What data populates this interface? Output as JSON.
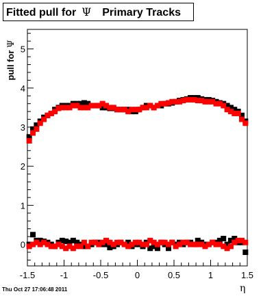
{
  "title": {
    "text": "Fitted pull for",
    "symbol": "Ψ",
    "suffix": "Primary Tracks"
  },
  "ylabel": {
    "text": "pull for",
    "symbol": "Ψ"
  },
  "xlabel": "η",
  "datestamp": "Thu Oct 27 17:06:48 2011",
  "colors": {
    "series_black": "#000000",
    "series_red": "#ff0000"
  },
  "chart_data": {
    "type": "scatter",
    "xlim": [
      -1.5,
      1.5
    ],
    "ylim": [
      -0.55,
      5.5
    ],
    "x_ticks": [
      -1.5,
      -1,
      -0.5,
      0,
      0.5,
      1,
      1.5
    ],
    "x_tick_labels": [
      "-1.5",
      "-1",
      "-0.5",
      "0",
      "0.5",
      "1",
      "1.5"
    ],
    "y_ticks": [
      0,
      1,
      2,
      3,
      4,
      5
    ],
    "y_tick_labels": [
      "0",
      "1",
      "2",
      "3",
      "4",
      "5"
    ],
    "x": [
      -1.475,
      -1.425,
      -1.375,
      -1.325,
      -1.275,
      -1.225,
      -1.175,
      -1.125,
      -1.075,
      -1.025,
      -0.975,
      -0.925,
      -0.875,
      -0.825,
      -0.775,
      -0.725,
      -0.675,
      -0.625,
      -0.575,
      -0.525,
      -0.475,
      -0.425,
      -0.375,
      -0.325,
      -0.275,
      -0.225,
      -0.175,
      -0.125,
      -0.075,
      -0.025,
      0.025,
      0.075,
      0.125,
      0.175,
      0.225,
      0.275,
      0.325,
      0.375,
      0.425,
      0.475,
      0.525,
      0.575,
      0.625,
      0.675,
      0.725,
      0.775,
      0.825,
      0.875,
      0.925,
      0.975,
      1.025,
      1.075,
      1.125,
      1.175,
      1.225,
      1.275,
      1.325,
      1.375,
      1.425,
      1.475
    ],
    "series": [
      {
        "color": "#000000",
        "upper": [
          2.75,
          2.95,
          3.05,
          3.15,
          3.25,
          3.3,
          3.35,
          3.45,
          3.5,
          3.55,
          3.55,
          3.55,
          3.6,
          3.6,
          3.6,
          3.62,
          3.6,
          3.55,
          3.55,
          3.55,
          3.5,
          3.5,
          3.48,
          3.48,
          3.45,
          3.45,
          3.45,
          3.45,
          3.4,
          3.4,
          3.45,
          3.5,
          3.55,
          3.55,
          3.5,
          3.55,
          3.55,
          3.6,
          3.6,
          3.62,
          3.65,
          3.68,
          3.7,
          3.72,
          3.75,
          3.75,
          3.75,
          3.72,
          3.7,
          3.7,
          3.68,
          3.65,
          3.62,
          3.6,
          3.55,
          3.5,
          3.45,
          3.4,
          3.3,
          3.15
        ],
        "lower": [
          0.0,
          0.25,
          0.1,
          0.1,
          0.08,
          0.05,
          0.0,
          -0.05,
          0.05,
          0.1,
          0.08,
          0.05,
          0.1,
          0.05,
          0.0,
          -0.05,
          -0.05,
          0.0,
          0.05,
          0.05,
          0.0,
          0.0,
          -0.08,
          -0.05,
          0.0,
          0.05,
          0.0,
          0.05,
          -0.05,
          0.0,
          0.0,
          -0.05,
          0.05,
          -0.1,
          -0.05,
          -0.1,
          0.05,
          0.0,
          -0.1,
          0.05,
          0.0,
          0.05,
          0.0,
          0.05,
          0.05,
          0.0,
          0.1,
          0.05,
          0.0,
          0.0,
          0.05,
          0.05,
          0.1,
          0.15,
          0.0,
          0.1,
          0.15,
          0.05,
          0.05,
          -0.2
        ]
      },
      {
        "color": "#ff0000",
        "upper": [
          2.65,
          2.85,
          2.95,
          3.1,
          3.2,
          3.3,
          3.35,
          3.4,
          3.48,
          3.5,
          3.5,
          3.5,
          3.55,
          3.55,
          3.5,
          3.5,
          3.5,
          3.55,
          3.55,
          3.55,
          3.6,
          3.55,
          3.5,
          3.5,
          3.45,
          3.45,
          3.45,
          3.4,
          3.45,
          3.45,
          3.45,
          3.5,
          3.5,
          3.55,
          3.5,
          3.55,
          3.6,
          3.6,
          3.62,
          3.65,
          3.65,
          3.65,
          3.68,
          3.7,
          3.7,
          3.7,
          3.68,
          3.68,
          3.65,
          3.65,
          3.65,
          3.6,
          3.6,
          3.55,
          3.45,
          3.4,
          3.35,
          3.35,
          3.2,
          3.1
        ],
        "lower": [
          -0.05,
          0.0,
          0.05,
          0.0,
          0.05,
          0.0,
          -0.05,
          -0.05,
          0.0,
          -0.05,
          -0.1,
          -0.05,
          -0.1,
          -0.05,
          -0.05,
          0.05,
          -0.05,
          0.05,
          0.05,
          0.0,
          0.05,
          0.1,
          0.05,
          0.0,
          0.05,
          0.05,
          0.0,
          -0.05,
          0.0,
          0.05,
          0.05,
          0.0,
          0.0,
          0.1,
          0.05,
          0.0,
          0.05,
          0.05,
          0.0,
          0.05,
          -0.05,
          0.0,
          0.05,
          0.05,
          0.0,
          0.0,
          0.0,
          0.0,
          -0.05,
          0.0,
          0.05,
          0.0,
          0.0,
          -0.05,
          -0.1,
          -0.05,
          0.05,
          0.1,
          0.1,
          0.05
        ]
      }
    ]
  }
}
